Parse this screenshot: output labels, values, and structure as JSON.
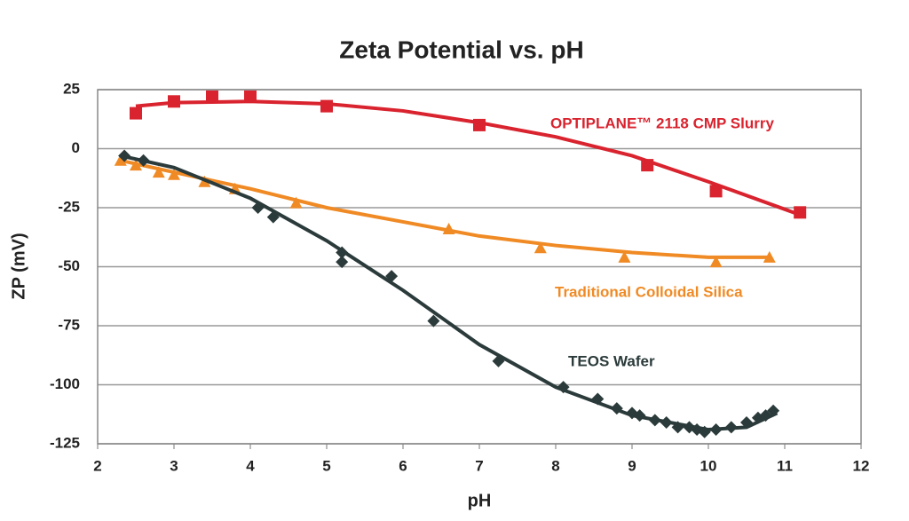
{
  "chart_data": {
    "type": "scatter",
    "title": "Zeta Potential vs. pH",
    "x_label": "pH",
    "y_label": "ZP (mV)",
    "xlim": [
      2,
      12
    ],
    "xticks": [
      2,
      3,
      4,
      5,
      6,
      7,
      8,
      9,
      10,
      11,
      12
    ],
    "ylim": [
      -125,
      25
    ],
    "yticks": [
      25,
      0,
      -25,
      -50,
      -75,
      -100,
      -125
    ],
    "grid": true,
    "series": [
      {
        "name": "OPTIPLANE™ 2118 CMP Slurry",
        "color": "#d9232e",
        "marker": "square",
        "x": [
          2.5,
          3,
          3.5,
          4,
          5,
          7,
          9.2,
          10.1,
          11.2
        ],
        "values": [
          15,
          20,
          22,
          22,
          18,
          10,
          -7,
          -18,
          -27
        ],
        "fit": {
          "x": [
            2.5,
            3,
            4,
            5,
            6,
            7,
            8,
            9,
            10,
            11.2
          ],
          "values": [
            18,
            19.5,
            20,
            19,
            16,
            11,
            5,
            -3,
            -14,
            -28
          ]
        }
      },
      {
        "name": "Traditional Colloidal Silica",
        "color": "#f08a24",
        "marker": "triangle",
        "x": [
          2.3,
          2.5,
          2.8,
          3,
          3.4,
          3.8,
          4.6,
          6.6,
          7.8,
          8.9,
          10.1,
          10.8
        ],
        "values": [
          -5,
          -7,
          -10,
          -11,
          -14,
          -17,
          -23,
          -34,
          -42,
          -46,
          -48,
          -46
        ],
        "fit": {
          "x": [
            2.3,
            3,
            4,
            5,
            6,
            7,
            8,
            9,
            10,
            10.8
          ],
          "values": [
            -5,
            -10,
            -17,
            -25,
            -31,
            -37,
            -41,
            -44,
            -46,
            -46
          ]
        }
      },
      {
        "name": "TEOS Wafer",
        "color": "#2b3a3a",
        "marker": "diamond",
        "x": [
          2.35,
          2.6,
          4.1,
          4.3,
          5.2,
          5.2,
          5.85,
          6.4,
          7.25,
          8.1,
          8.55,
          8.8,
          9,
          9.1,
          9.3,
          9.45,
          9.6,
          9.75,
          9.85,
          9.95,
          10.1,
          10.3,
          10.5,
          10.65,
          10.75,
          10.85
        ],
        "values": [
          -3,
          -5,
          -25,
          -29,
          -44,
          -48,
          -54,
          -73,
          -90,
          -101,
          -106,
          -110,
          -112,
          -113,
          -115,
          -116,
          -118,
          -118,
          -119,
          -120,
          -119,
          -118,
          -116,
          -114,
          -113,
          -111
        ],
        "fit": {
          "x": [
            2.3,
            3,
            4,
            5,
            6,
            7,
            8,
            9,
            10,
            10.5,
            10.9
          ],
          "values": [
            -3,
            -8,
            -21,
            -39,
            -60,
            -83,
            -101,
            -113,
            -119,
            -118,
            -112
          ]
        }
      }
    ]
  }
}
